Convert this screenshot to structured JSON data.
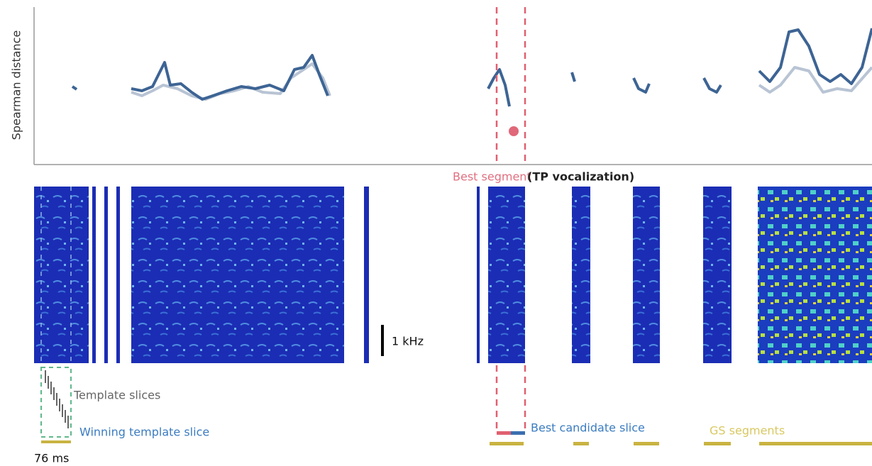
{
  "y_axis_label": "Spearman distance",
  "best_segment": {
    "label": "Best segment",
    "note": "(TP vocalization)"
  },
  "scale_bar": "1 kHz",
  "template": {
    "slices_label": "Template slices",
    "winning_label": "Winning template slice",
    "duration": "76 ms"
  },
  "candidate": {
    "label": "Best candidate slice"
  },
  "gs_segments": "GS segments"
}
